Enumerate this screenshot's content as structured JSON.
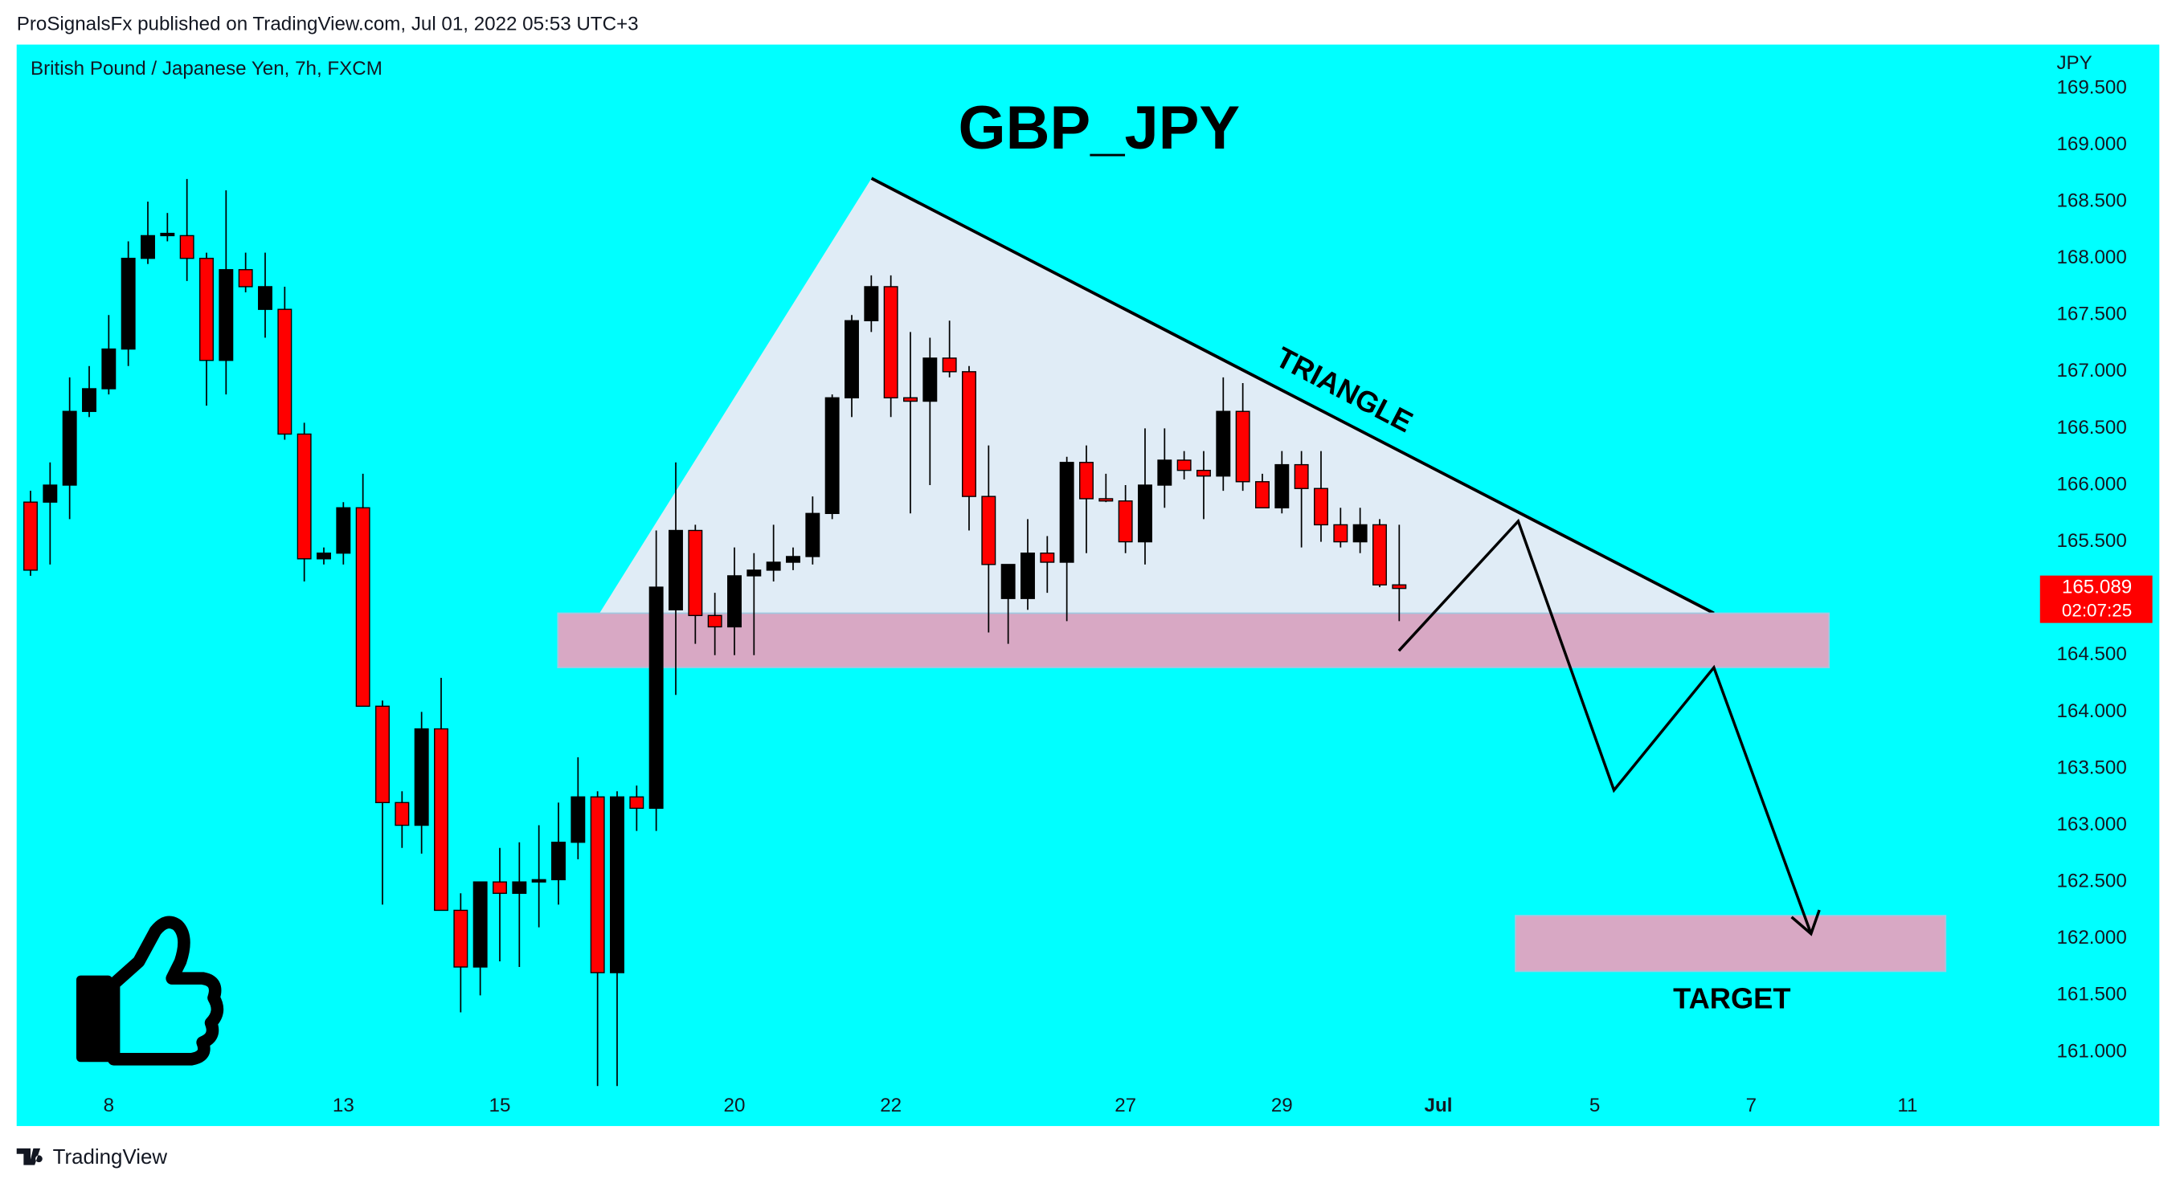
{
  "header": {
    "text": "ProSignalsFx published on TradingView.com, Jul 01, 2022 05:53 UTC+3"
  },
  "footer": {
    "brand": "TradingView"
  },
  "chart_data": {
    "type": "candlestick",
    "title": "GBP_JPY",
    "subtitle": "British Pound / Japanese Yen, 7h, FXCM",
    "y_axis_label": "JPY",
    "annotations": [
      "TRIANGLE",
      "TARGET"
    ],
    "countdown": "02:07:25",
    "up_color": "#000000",
    "down_color": "#ff0000",
    "background": "#00ffff",
    "open": [
      165.85,
      165.85,
      166.0,
      166.65,
      166.85,
      167.2,
      168.0,
      168.2,
      168.2,
      168.0,
      167.1,
      167.9,
      167.55,
      167.55,
      166.45,
      165.35,
      165.4,
      165.8,
      164.05,
      163.2,
      163.0,
      163.85,
      162.25,
      161.75,
      162.5,
      162.4,
      162.5,
      162.52,
      162.85,
      163.25,
      161.7,
      163.25,
      163.15,
      164.9,
      165.6,
      164.85,
      164.75,
      165.2,
      165.25,
      165.32,
      165.37,
      165.75,
      166.77,
      167.45,
      167.75,
      166.77,
      166.74,
      167.12,
      167.0,
      165.9,
      165.0,
      165.0,
      165.4,
      165.32,
      166.2,
      165.88,
      165.86,
      165.5,
      166.0,
      166.22,
      166.13,
      166.08,
      166.65,
      166.03,
      165.8,
      166.18,
      165.97,
      165.65,
      165.5,
      165.65,
      165.12
    ],
    "high": [
      165.95,
      166.2,
      166.95,
      167.05,
      167.5,
      168.15,
      168.5,
      168.4,
      168.7,
      168.05,
      168.6,
      168.05,
      168.05,
      167.75,
      166.55,
      165.45,
      165.85,
      166.1,
      164.1,
      163.3,
      164.0,
      164.3,
      162.4,
      162.5,
      162.8,
      162.85,
      163.0,
      163.2,
      163.6,
      163.3,
      163.3,
      163.35,
      165.6,
      166.2,
      165.65,
      165.05,
      165.45,
      165.4,
      165.65,
      165.45,
      165.9,
      166.8,
      167.5,
      167.85,
      167.85,
      167.35,
      167.3,
      167.45,
      167.05,
      166.35,
      165.3,
      165.7,
      165.55,
      166.25,
      166.35,
      166.1,
      166.0,
      166.5,
      166.5,
      166.3,
      166.3,
      166.95,
      166.9,
      166.1,
      166.3,
      166.3,
      166.3,
      165.8,
      165.8,
      165.7,
      165.65
    ],
    "low": [
      165.2,
      165.3,
      165.7,
      166.6,
      166.8,
      167.05,
      167.95,
      168.15,
      167.8,
      166.7,
      166.8,
      167.7,
      167.3,
      166.4,
      165.15,
      165.3,
      165.3,
      164.05,
      162.3,
      162.8,
      162.75,
      162.25,
      161.35,
      161.5,
      161.8,
      161.75,
      162.1,
      162.3,
      162.7,
      160.7,
      160.7,
      162.95,
      162.95,
      164.15,
      164.6,
      164.5,
      164.5,
      164.5,
      165.15,
      165.25,
      165.3,
      165.7,
      166.6,
      167.35,
      166.6,
      165.75,
      166.0,
      166.95,
      165.6,
      164.7,
      164.6,
      164.9,
      165.05,
      164.8,
      165.4,
      165.85,
      165.4,
      165.3,
      165.8,
      166.05,
      165.7,
      165.95,
      165.95,
      165.8,
      165.75,
      165.45,
      165.5,
      165.45,
      165.4,
      165.1,
      164.8
    ],
    "close": [
      165.25,
      166.0,
      166.65,
      166.85,
      167.2,
      168.0,
      168.2,
      168.22,
      168.0,
      167.1,
      167.9,
      167.75,
      167.75,
      166.45,
      165.35,
      165.4,
      165.8,
      164.05,
      163.2,
      163.0,
      163.85,
      162.25,
      161.75,
      162.5,
      162.4,
      162.5,
      162.52,
      162.85,
      163.25,
      161.7,
      163.25,
      163.15,
      165.1,
      165.6,
      164.85,
      164.75,
      165.2,
      165.25,
      165.32,
      165.37,
      165.75,
      166.77,
      167.45,
      167.75,
      166.77,
      166.74,
      167.12,
      167.0,
      165.9,
      165.3,
      165.3,
      165.4,
      165.32,
      166.2,
      165.88,
      165.86,
      165.5,
      166.0,
      166.22,
      166.13,
      166.08,
      166.65,
      166.03,
      165.8,
      166.18,
      165.97,
      165.65,
      165.5,
      165.65,
      165.12,
      165.089
    ],
    "xlim": [
      -0.71,
      102.63
    ],
    "xticks": [
      {
        "value": 4,
        "label": "8"
      },
      {
        "value": 16,
        "label": "13"
      },
      {
        "value": 24,
        "label": "15"
      },
      {
        "value": 36,
        "label": "20"
      },
      {
        "value": 44,
        "label": "22"
      },
      {
        "value": 56,
        "label": "27"
      },
      {
        "value": 64,
        "label": "29"
      },
      {
        "value": 72,
        "label": "Jul"
      },
      {
        "value": 80,
        "label": "5"
      },
      {
        "value": 88,
        "label": "7"
      },
      {
        "value": 96,
        "label": "11"
      }
    ],
    "ylim": [
      160.63,
      169.885
    ],
    "yticks": [
      {
        "value": 161,
        "label": "161.000"
      },
      {
        "value": 161.5,
        "label": "161.500"
      },
      {
        "value": 162,
        "label": "162.000"
      },
      {
        "value": 162.5,
        "label": "162.500"
      },
      {
        "value": 163,
        "label": "163.000"
      },
      {
        "value": 163.5,
        "label": "163.500"
      },
      {
        "value": 164,
        "label": "164.000"
      },
      {
        "value": 164.5,
        "label": "164.500"
      },
      {
        "value": 165.5,
        "label": "165.500"
      },
      {
        "value": 166,
        "label": "166.000"
      },
      {
        "value": 166.5,
        "label": "166.500"
      },
      {
        "value": 167,
        "label": "167.000"
      },
      {
        "value": 167.5,
        "label": "167.500"
      },
      {
        "value": 168,
        "label": "168.000"
      },
      {
        "value": 168.5,
        "label": "168.500"
      },
      {
        "value": 169,
        "label": "169.000"
      },
      {
        "value": 169.5,
        "label": "169.500"
      }
    ]
  }
}
